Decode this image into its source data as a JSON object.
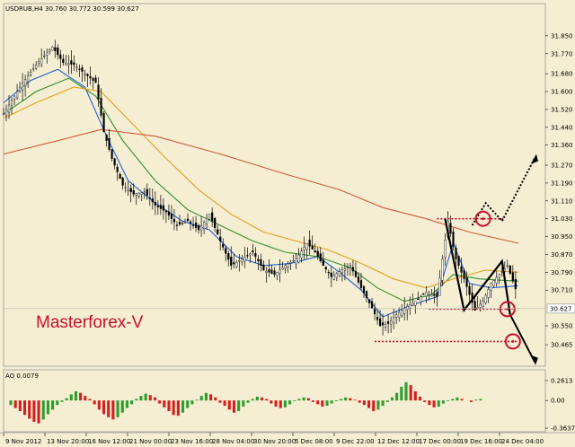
{
  "header": {
    "instrument": "USDRUB,H4",
    "ohlc": "30.760 30.772 30.599 30.627"
  },
  "brand": "Masterforex-V",
  "ao_label": "AO 0.0079",
  "chart_data": [
    {
      "type": "candlestick",
      "title": "USDRUB,H4",
      "ylim": [
        30.385,
        31.93
      ],
      "y_ticks": [
        "31.850",
        "31.770",
        "31.680",
        "31.600",
        "31.520",
        "31.440",
        "31.360",
        "31.270",
        "31.190",
        "31.110",
        "31.030",
        "30.950",
        "30.870",
        "30.790",
        "30.710",
        "30.550",
        "30.465"
      ],
      "last_price": "30.627",
      "x_tick_labels": [
        "9 Nov 2012",
        "13 Nov 20:00",
        "16 Nov 12:00",
        "21 Nov 00:00",
        "23 Nov 16:00",
        "28 Nov 04:00",
        "30 Nov 20:00",
        "5 Dec 08:00",
        "9 Dec 22:00",
        "12 Dec 12:00",
        "17 Dec 00:00",
        "19 Dec 16:00",
        "24 Dec 04:00"
      ],
      "price_path": [
        [
          0,
          31.5
        ],
        [
          6,
          31.62
        ],
        [
          12,
          31.72
        ],
        [
          18,
          31.8
        ],
        [
          22,
          31.73
        ],
        [
          26,
          31.72
        ],
        [
          30,
          31.68
        ],
        [
          34,
          31.64
        ],
        [
          37,
          31.42
        ],
        [
          40,
          31.3
        ],
        [
          44,
          31.18
        ],
        [
          48,
          31.14
        ],
        [
          52,
          31.15
        ],
        [
          56,
          31.09
        ],
        [
          60,
          31.06
        ],
        [
          64,
          31.0
        ],
        [
          68,
          31.02
        ],
        [
          72,
          30.98
        ],
        [
          76,
          31.05
        ],
        [
          80,
          30.93
        ],
        [
          84,
          30.82
        ],
        [
          88,
          30.85
        ],
        [
          92,
          30.88
        ],
        [
          96,
          30.8
        ],
        [
          100,
          30.78
        ],
        [
          104,
          30.82
        ],
        [
          108,
          30.85
        ],
        [
          112,
          30.92
        ],
        [
          115,
          30.88
        ],
        [
          118,
          30.82
        ],
        [
          121,
          30.77
        ],
        [
          125,
          30.8
        ],
        [
          128,
          30.82
        ],
        [
          132,
          30.72
        ],
        [
          136,
          30.63
        ],
        [
          139,
          30.55
        ],
        [
          142,
          30.56
        ],
        [
          145,
          30.6
        ],
        [
          148,
          30.63
        ],
        [
          152,
          30.66
        ],
        [
          156,
          30.7
        ],
        [
          160,
          30.68
        ],
        [
          164,
          31.02
        ],
        [
          167,
          30.85
        ],
        [
          170,
          30.76
        ],
        [
          174,
          30.62
        ],
        [
          177,
          30.66
        ],
        [
          180,
          30.74
        ],
        [
          183,
          30.78
        ],
        [
          186,
          30.82
        ],
        [
          188,
          30.75
        ],
        [
          190,
          30.68
        ]
      ],
      "moving_averages": [
        {
          "color": "#1e5fd8",
          "values": [
            [
              0,
              31.55
            ],
            [
              10,
              31.65
            ],
            [
              20,
              31.7
            ],
            [
              30,
              31.62
            ],
            [
              38,
              31.4
            ],
            [
              46,
              31.2
            ],
            [
              56,
              31.1
            ],
            [
              66,
              31.02
            ],
            [
              76,
              30.98
            ],
            [
              86,
              30.86
            ],
            [
              96,
              30.82
            ],
            [
              106,
              30.83
            ],
            [
              116,
              30.86
            ],
            [
              124,
              30.79
            ],
            [
              132,
              30.71
            ],
            [
              140,
              30.59
            ],
            [
              150,
              30.64
            ],
            [
              160,
              30.68
            ],
            [
              166,
              30.92
            ],
            [
              172,
              30.74
            ],
            [
              180,
              30.72
            ],
            [
              190,
              30.73
            ]
          ]
        },
        {
          "color": "#2f8f2f",
          "values": [
            [
              0,
              31.5
            ],
            [
              12,
              31.6
            ],
            [
              24,
              31.66
            ],
            [
              34,
              31.58
            ],
            [
              44,
              31.38
            ],
            [
              56,
              31.2
            ],
            [
              68,
              31.07
            ],
            [
              80,
              31.0
            ],
            [
              92,
              30.93
            ],
            [
              104,
              30.88
            ],
            [
              116,
              30.86
            ],
            [
              128,
              30.81
            ],
            [
              138,
              30.72
            ],
            [
              148,
              30.66
            ],
            [
              158,
              30.69
            ],
            [
              166,
              30.78
            ],
            [
              176,
              30.76
            ],
            [
              190,
              30.75
            ]
          ]
        },
        {
          "color": "#e6a01e",
          "values": [
            [
              0,
              31.48
            ],
            [
              12,
              31.55
            ],
            [
              26,
              31.62
            ],
            [
              36,
              31.6
            ],
            [
              48,
              31.45
            ],
            [
              60,
              31.3
            ],
            [
              72,
              31.16
            ],
            [
              84,
              31.05
            ],
            [
              96,
              30.97
            ],
            [
              108,
              30.93
            ],
            [
              120,
              30.89
            ],
            [
              132,
              30.83
            ],
            [
              144,
              30.76
            ],
            [
              156,
              30.72
            ],
            [
              166,
              30.76
            ],
            [
              178,
              30.8
            ],
            [
              190,
              30.79
            ]
          ]
        },
        {
          "color": "#d25a3c",
          "values": [
            [
              0,
              31.32
            ],
            [
              20,
              31.38
            ],
            [
              36,
              31.43
            ],
            [
              56,
              31.4
            ],
            [
              80,
              31.32
            ],
            [
              104,
              31.23
            ],
            [
              124,
              31.16
            ],
            [
              140,
              31.08
            ],
            [
              156,
              31.03
            ],
            [
              172,
              30.97
            ],
            [
              190,
              30.92
            ]
          ]
        }
      ],
      "annotations": {
        "solid_zigzag": [
          [
            163,
            31.03
          ],
          [
            170,
            30.62
          ],
          [
            184,
            30.84
          ],
          [
            187,
            30.6
          ]
        ],
        "solid_arrow": [
          [
            187,
            30.6
          ],
          [
            196,
            30.39
          ]
        ],
        "dotted_up_arrow": [
          [
            173,
            31.0
          ],
          [
            178,
            31.1
          ],
          [
            184,
            31.02
          ],
          [
            196,
            31.3
          ]
        ],
        "red_dotted_levels": [
          {
            "x1": 157,
            "x2": 188,
            "y": 30.625
          },
          {
            "x1": 137,
            "x2": 190,
            "y": 30.48
          },
          {
            "x1": 160,
            "x2": 185,
            "y": 31.03
          }
        ],
        "circles": [
          [
            177,
            31.03
          ],
          [
            186,
            30.625
          ],
          [
            188,
            30.48
          ]
        ]
      }
    },
    {
      "type": "bar",
      "title": "AO 0.0079",
      "y_ticks": [
        "0.2613",
        "0.00",
        "-0.3637"
      ],
      "ylim": [
        -0.3637,
        0.2613
      ],
      "values": [
        -0.06,
        -0.1,
        -0.14,
        -0.19,
        -0.24,
        -0.28,
        -0.3,
        -0.25,
        -0.18,
        -0.12,
        -0.06,
        -0.02,
        0.03,
        0.08,
        0.12,
        0.1,
        0.06,
        0.02,
        -0.05,
        -0.12,
        -0.18,
        -0.22,
        -0.25,
        -0.22,
        -0.16,
        -0.1,
        -0.05,
        0.02,
        0.06,
        0.09,
        0.07,
        0.04,
        -0.04,
        -0.09,
        -0.14,
        -0.19,
        -0.2,
        -0.16,
        -0.1,
        -0.05,
        0.01,
        0.06,
        0.1,
        0.08,
        0.04,
        -0.03,
        -0.07,
        -0.12,
        -0.16,
        -0.14,
        -0.08,
        -0.03,
        0.02,
        0.05,
        0.04,
        0.02,
        -0.04,
        -0.08,
        -0.1,
        -0.09,
        -0.05,
        -0.01,
        0.02,
        0.04,
        0.03,
        -0.02,
        -0.05,
        -0.08,
        -0.07,
        -0.04,
        -0.01,
        0.02,
        0.04,
        0.03,
        0.01,
        -0.03,
        -0.06,
        -0.1,
        -0.14,
        -0.12,
        -0.07,
        -0.02,
        0.04,
        0.1,
        0.18,
        0.24,
        0.2,
        0.12,
        0.05,
        -0.02,
        -0.06,
        -0.09,
        -0.08,
        -0.04,
        -0.01,
        0.02,
        0.04,
        0.02,
        0.0,
        -0.02,
        0.01,
        0.02
      ]
    }
  ]
}
